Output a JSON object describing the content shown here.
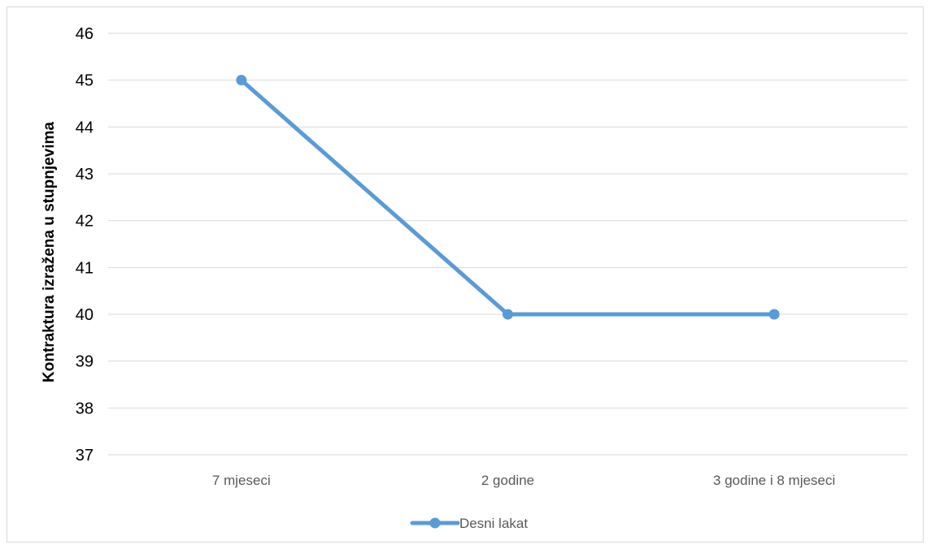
{
  "chart_data": {
    "type": "line",
    "categories": [
      "7 mjeseci",
      "2 godine",
      "3 godine i 8 mjeseci"
    ],
    "series": [
      {
        "name": "Desni lakat",
        "values": [
          45,
          40,
          40
        ],
        "color": "#5b9bd5"
      }
    ],
    "xlabel": "",
    "ylabel": "Kontraktura izražena u stupnjevima",
    "ylim": [
      37,
      46
    ],
    "yticks": [
      37,
      38,
      39,
      40,
      41,
      42,
      43,
      44,
      45,
      46
    ],
    "grid": true,
    "gridColor": "#d9d9d9",
    "legend": "bottom"
  }
}
